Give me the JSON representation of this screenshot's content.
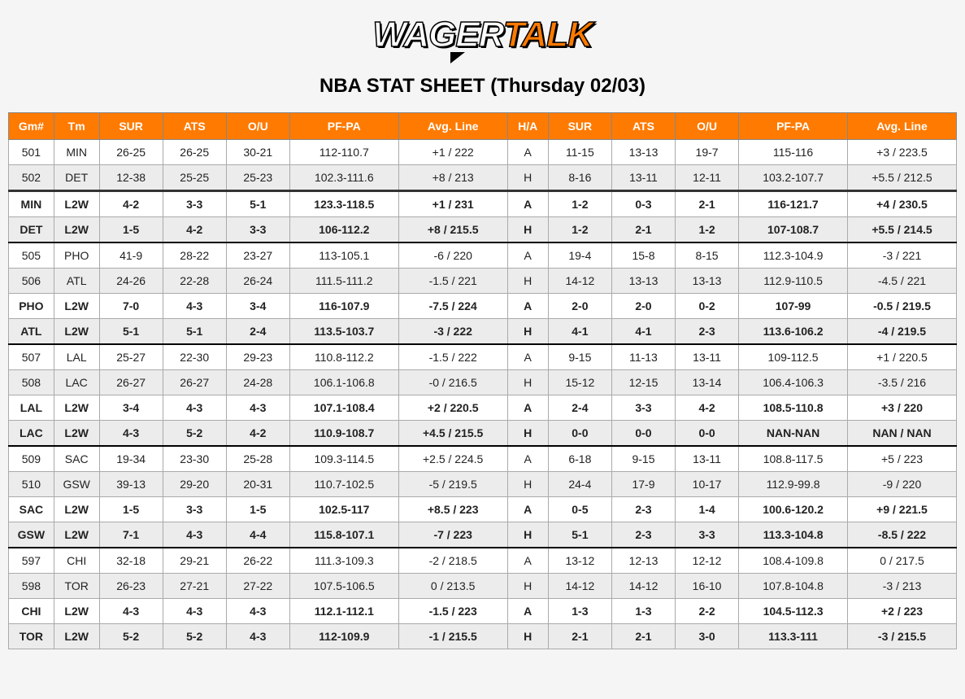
{
  "brand": {
    "part1": "WAGER",
    "part2": "TALK"
  },
  "sheet_title": "NBA STAT SHEET (Thursday 02/03)",
  "colors": {
    "header_bg": "#ff7a00",
    "header_fg": "#ffffff",
    "row_alt_bg": "#ececec",
    "page_bg": "#f5f5f5",
    "border": "#aaaaaa",
    "separator": "#000000"
  },
  "columns": [
    "Gm#",
    "Tm",
    "SUR",
    "ATS",
    "O/U",
    "PF-PA",
    "Avg. Line",
    "H/A",
    "SUR",
    "ATS",
    "O/U",
    "PF-PA",
    "Avg. Line"
  ],
  "groups": [
    {
      "rows": [
        {
          "style": "a",
          "c": [
            "501",
            "MIN",
            "26-25",
            "26-25",
            "30-21",
            "112-110.7",
            "+1 / 222",
            "A",
            "11-15",
            "13-13",
            "19-7",
            "115-116",
            "+3 / 223.5"
          ]
        },
        {
          "style": "b",
          "c": [
            "502",
            "DET",
            "12-38",
            "25-25",
            "25-23",
            "102.3-111.6",
            "+8 / 213",
            "H",
            "8-16",
            "13-11",
            "12-11",
            "103.2-107.7",
            "+5.5 / 212.5"
          ]
        },
        {
          "style": "c",
          "c": [
            "MIN",
            "L2W",
            "4-2",
            "3-3",
            "5-1",
            "123.3-118.5",
            "+1 / 231",
            "A",
            "1-2",
            "0-3",
            "2-1",
            "116-121.7",
            "+4 / 230.5"
          ],
          "sep": "heavy"
        },
        {
          "style": "d",
          "c": [
            "DET",
            "L2W",
            "1-5",
            "4-2",
            "3-3",
            "106-112.2",
            "+8 / 215.5",
            "H",
            "1-2",
            "2-1",
            "1-2",
            "107-108.7",
            "+5.5 / 214.5"
          ]
        }
      ]
    },
    {
      "rows": [
        {
          "style": "a",
          "c": [
            "505",
            "PHO",
            "41-9",
            "28-22",
            "23-27",
            "113-105.1",
            "-6 / 220",
            "A",
            "19-4",
            "15-8",
            "8-15",
            "112.3-104.9",
            "-3 / 221"
          ],
          "sep": "normal"
        },
        {
          "style": "b",
          "c": [
            "506",
            "ATL",
            "24-26",
            "22-28",
            "26-24",
            "111.5-111.2",
            "-1.5 / 221",
            "H",
            "14-12",
            "13-13",
            "13-13",
            "112.9-110.5",
            "-4.5 / 221"
          ]
        },
        {
          "style": "c",
          "c": [
            "PHO",
            "L2W",
            "7-0",
            "4-3",
            "3-4",
            "116-107.9",
            "-7.5 / 224",
            "A",
            "2-0",
            "2-0",
            "0-2",
            "107-99",
            "-0.5 / 219.5"
          ]
        },
        {
          "style": "d",
          "c": [
            "ATL",
            "L2W",
            "5-1",
            "5-1",
            "2-4",
            "113.5-103.7",
            "-3 / 222",
            "H",
            "4-1",
            "4-1",
            "2-3",
            "113.6-106.2",
            "-4 / 219.5"
          ]
        }
      ]
    },
    {
      "rows": [
        {
          "style": "a",
          "c": [
            "507",
            "LAL",
            "25-27",
            "22-30",
            "29-23",
            "110.8-112.2",
            "-1.5 / 222",
            "A",
            "9-15",
            "11-13",
            "13-11",
            "109-112.5",
            "+1 / 220.5"
          ],
          "sep": "normal"
        },
        {
          "style": "b",
          "c": [
            "508",
            "LAC",
            "26-27",
            "26-27",
            "24-28",
            "106.1-106.8",
            "-0 / 216.5",
            "H",
            "15-12",
            "12-15",
            "13-14",
            "106.4-106.3",
            "-3.5 / 216"
          ]
        },
        {
          "style": "c",
          "c": [
            "LAL",
            "L2W",
            "3-4",
            "4-3",
            "4-3",
            "107.1-108.4",
            "+2 / 220.5",
            "A",
            "2-4",
            "3-3",
            "4-2",
            "108.5-110.8",
            "+3 / 220"
          ]
        },
        {
          "style": "d",
          "c": [
            "LAC",
            "L2W",
            "4-3",
            "5-2",
            "4-2",
            "110.9-108.7",
            "+4.5 / 215.5",
            "H",
            "0-0",
            "0-0",
            "0-0",
            "NAN-NAN",
            "NAN / NAN"
          ]
        }
      ]
    },
    {
      "rows": [
        {
          "style": "a",
          "c": [
            "509",
            "SAC",
            "19-34",
            "23-30",
            "25-28",
            "109.3-114.5",
            "+2.5 / 224.5",
            "A",
            "6-18",
            "9-15",
            "13-11",
            "108.8-117.5",
            "+5 / 223"
          ],
          "sep": "normal"
        },
        {
          "style": "b",
          "c": [
            "510",
            "GSW",
            "39-13",
            "29-20",
            "20-31",
            "110.7-102.5",
            "-5 / 219.5",
            "H",
            "24-4",
            "17-9",
            "10-17",
            "112.9-99.8",
            "-9 / 220"
          ]
        },
        {
          "style": "c",
          "c": [
            "SAC",
            "L2W",
            "1-5",
            "3-3",
            "1-5",
            "102.5-117",
            "+8.5 / 223",
            "A",
            "0-5",
            "2-3",
            "1-4",
            "100.6-120.2",
            "+9 / 221.5"
          ]
        },
        {
          "style": "d",
          "c": [
            "GSW",
            "L2W",
            "7-1",
            "4-3",
            "4-4",
            "115.8-107.1",
            "-7 / 223",
            "H",
            "5-1",
            "2-3",
            "3-3",
            "113.3-104.8",
            "-8.5 / 222"
          ]
        }
      ]
    },
    {
      "rows": [
        {
          "style": "a",
          "c": [
            "597",
            "CHI",
            "32-18",
            "29-21",
            "26-22",
            "111.3-109.3",
            "-2 / 218.5",
            "A",
            "13-12",
            "12-13",
            "12-12",
            "108.4-109.8",
            "0 / 217.5"
          ],
          "sep": "normal"
        },
        {
          "style": "b",
          "c": [
            "598",
            "TOR",
            "26-23",
            "27-21",
            "27-22",
            "107.5-106.5",
            "0 / 213.5",
            "H",
            "14-12",
            "14-12",
            "16-10",
            "107.8-104.8",
            "-3 / 213"
          ]
        },
        {
          "style": "c",
          "c": [
            "CHI",
            "L2W",
            "4-3",
            "4-3",
            "4-3",
            "112.1-112.1",
            "-1.5 / 223",
            "A",
            "1-3",
            "1-3",
            "2-2",
            "104.5-112.3",
            "+2 / 223"
          ]
        },
        {
          "style": "d",
          "c": [
            "TOR",
            "L2W",
            "5-2",
            "5-2",
            "4-3",
            "112-109.9",
            "-1 / 215.5",
            "H",
            "2-1",
            "2-1",
            "3-0",
            "113.3-111",
            "-3 / 215.5"
          ]
        }
      ]
    }
  ]
}
